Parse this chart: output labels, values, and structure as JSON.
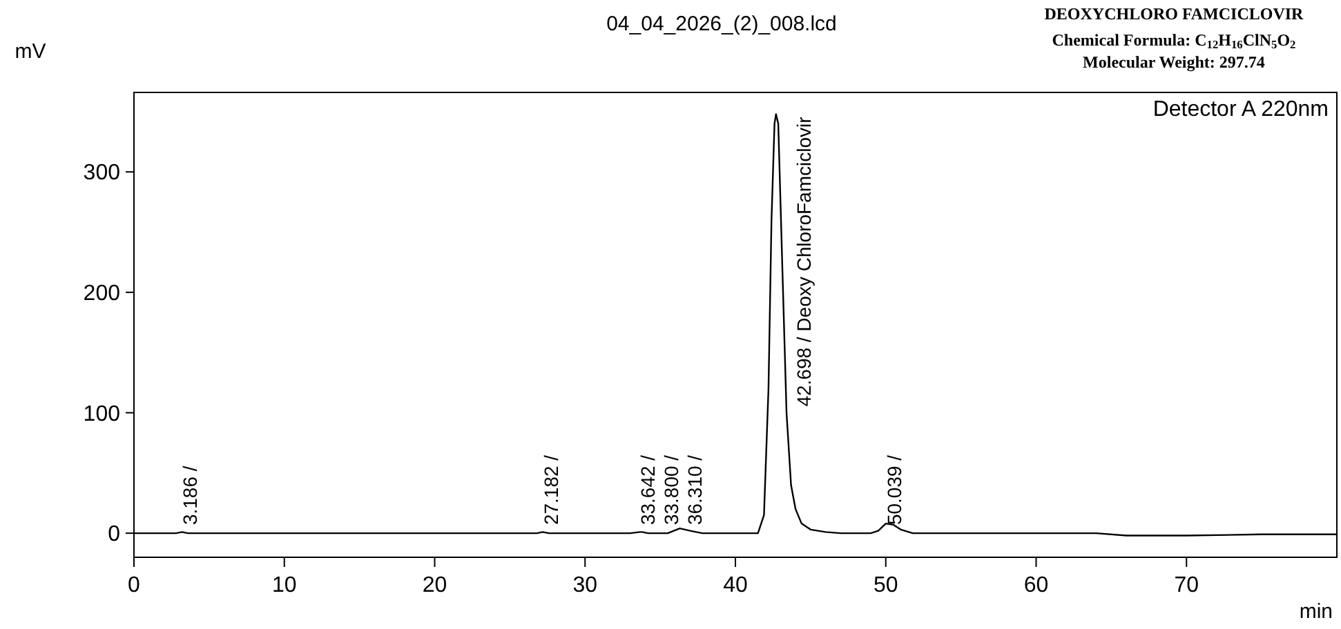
{
  "chart_data": {
    "type": "line",
    "title": "04_04_2026_(2)_008.lcd",
    "subtitle": "DEOXYCHLORO FAMCICLOVIR",
    "xlabel": "min",
    "ylabel": "mV",
    "annotations": [
      "Chemical Formula: C$_{12}$H$_{16}$ClN$_{5}$O$_{2}$",
      "Molecular Weight: 297.74",
      "Detector A 220nm",
      {
        "text": "3.186 /",
        "x": 3.186,
        "y": 0
      },
      {
        "text": "27.182 /",
        "x": 27.182,
        "y": 0
      },
      {
        "text": "33.642 /",
        "x": 33.642,
        "y": 0
      },
      {
        "text": "33.800 /",
        "x": 33.8,
        "y": 0
      },
      {
        "text": "36.310 /",
        "x": 36.31,
        "y": 0
      },
      {
        "text": "42.698 / Deoxy ChloroFamciclovir",
        "x": 42.698,
        "y": 348
      },
      {
        "text": "50.039 /",
        "x": 50.039,
        "y": 0
      }
    ],
    "series": [
      {
        "color": "#000000",
        "x": [
          0,
          2.8,
          3.186,
          3.6,
          10,
          20,
          26.8,
          27.182,
          27.6,
          33,
          33.642,
          33.8,
          34.2,
          35.5,
          36.3,
          37,
          37.8,
          41,
          41.5,
          41.9,
          42.2,
          42.4,
          42.6,
          42.7,
          42.85,
          43.1,
          43.4,
          43.7,
          44,
          44.4,
          45,
          46,
          47,
          49,
          49.5,
          50,
          50.5,
          51,
          51.8,
          55,
          60,
          64,
          66,
          70,
          75,
          80
        ],
        "values": [
          0,
          0,
          1,
          0,
          0,
          0,
          0,
          1,
          0,
          0,
          1,
          1,
          0,
          0,
          4,
          2,
          0,
          0,
          0,
          15,
          120,
          260,
          340,
          348,
          340,
          230,
          100,
          40,
          20,
          8,
          3,
          1,
          0,
          0,
          2,
          8,
          7,
          3,
          0,
          0,
          0,
          0,
          -2,
          -2,
          -1,
          -1
        ]
      }
    ],
    "xlim": [
      0,
      80
    ],
    "ylim": [
      -20,
      366
    ],
    "xticks": [
      0,
      10,
      20,
      30,
      40,
      50,
      60,
      70
    ],
    "yticks": [
      0,
      100,
      200,
      300
    ],
    "grid": false,
    "line_style": "solid",
    "marker": "none"
  }
}
